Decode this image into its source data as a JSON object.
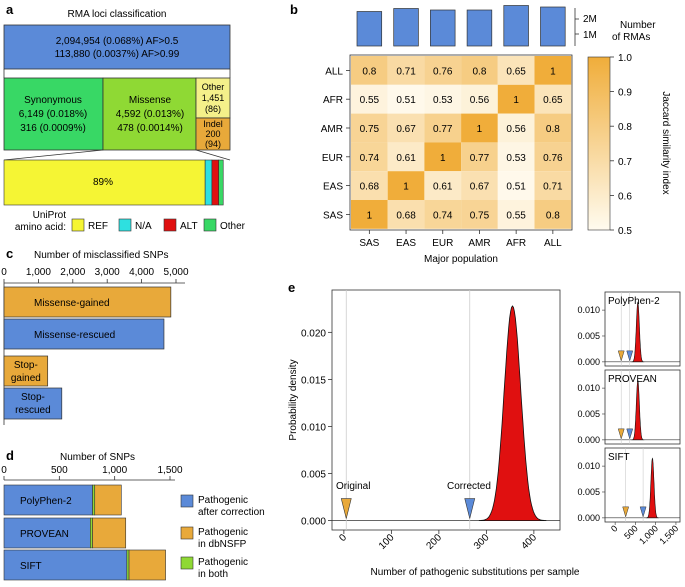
{
  "colors": {
    "blue": "#5b8ad8",
    "green": "#38d865",
    "lime": "#8fd934",
    "yellow": "#f5f534",
    "orange": "#e8a93a",
    "cyan": "#2ee0e0",
    "red": "#e01010",
    "paleyellow": "#f4f08a",
    "heatlow": "#fffbef",
    "heathigh": "#f0ad3a",
    "axis": "#333333"
  },
  "panel_a": {
    "label": "a",
    "title": "RMA loci classification",
    "top_box": {
      "line1": "2,094,954 (0.068%) AF>0.5",
      "line2": "113,880 (0.0037%) AF>0.99"
    },
    "synonymous": {
      "name": "Synonymous",
      "line1": "6,149 (0.018%)",
      "line2": "316 (0.0009%)"
    },
    "missense": {
      "name": "Missense",
      "line1": "4,592 (0.013%)",
      "line2": "478 (0.0014%)"
    },
    "other": {
      "name": "Other",
      "line1": "1,451",
      "line2": "(86)"
    },
    "indel": {
      "name": "Indel",
      "line1": "200",
      "line2": "(94)"
    },
    "bottom_bar": {
      "ref_percent": "89%",
      "fractions": [
        0.89,
        0.03,
        0.03,
        0.02
      ]
    },
    "legend_title_1": "UniProt",
    "legend_title_2": "amino acid:",
    "legend": [
      "REF",
      "N/A",
      "ALT",
      "Other"
    ]
  },
  "panel_b": {
    "label": "b",
    "xlabel": "Major population",
    "colorbar_label": "Jaccard similarity index",
    "colorbar_ticks": [
      "1.0",
      "0.9",
      "0.8",
      "0.7",
      "0.6",
      "0.5"
    ],
    "bar_axis_label_1": "Number",
    "bar_axis_label_2": "of RMAs",
    "bar_ticks": [
      "2M",
      "1M"
    ]
  },
  "panel_c": {
    "label": "c",
    "title": "Number of misclassified SNPs",
    "ticks": [
      "0",
      "1,000",
      "2,000",
      "3,000",
      "4,000",
      "5,000"
    ],
    "bars": [
      {
        "label": "Missense-gained",
        "value": 4850
      },
      {
        "label": "Missense-rescued",
        "value": 4650
      },
      {
        "label1": "Stop-",
        "label2": "gained",
        "value": 1270
      },
      {
        "label1": "Stop-",
        "label2": "rescued",
        "value": 1680
      }
    ]
  },
  "panel_d": {
    "label": "d",
    "title": "Number of SNPs",
    "ticks": [
      "0",
      "500",
      "1,000",
      "1,500"
    ],
    "tools": [
      {
        "name": "PolyPhen-2",
        "blue": 800,
        "green": 20,
        "orange": 240
      },
      {
        "name": "PROVEAN",
        "blue": 780,
        "green": 20,
        "orange": 300
      },
      {
        "name": "SIFT",
        "blue": 1110,
        "green": 20,
        "orange": 330
      }
    ],
    "legend": [
      {
        "line1": "Pathogenic",
        "line2": "after correction"
      },
      {
        "line1": "Pathogenic",
        "line2": "in dbNSFP"
      },
      {
        "line1": "Pathogenic",
        "line2": "in both"
      }
    ]
  },
  "panel_e": {
    "label": "e",
    "ylabel": "Probability density",
    "xlabel": "Number of pathogenic substitutions per sample",
    "yticks": [
      "0.000",
      "0.005",
      "0.010",
      "0.015",
      "0.020"
    ],
    "xticks": [
      "0",
      "100",
      "200",
      "300",
      "400"
    ],
    "original_label": "Original",
    "corrected_label": "Corrected",
    "original_value": 5,
    "corrected_value": 265,
    "peak_center": 355,
    "sub_panels": [
      {
        "name": "PolyPhen-2",
        "original": 150,
        "corrected": 360,
        "peak": 560
      },
      {
        "name": "PROVEAN",
        "original": 150,
        "corrected": 360,
        "peak": 560
      },
      {
        "name": "SIFT",
        "original": 260,
        "corrected": 690,
        "peak": 920
      }
    ],
    "sub_yticks": [
      "0.010",
      "0.005",
      "0.000"
    ],
    "sub_xticks": [
      "0",
      "500",
      "1,000",
      "1,500"
    ]
  },
  "chart_data": {
    "type": "heatmap",
    "title": "Jaccard similarity index",
    "xlabel": "Major population",
    "ylabel": "",
    "x_categories": [
      "SAS",
      "EAS",
      "EUR",
      "AMR",
      "AFR",
      "ALL"
    ],
    "y_categories": [
      "ALL",
      "AFR",
      "AMR",
      "EUR",
      "EAS",
      "SAS"
    ],
    "values": [
      [
        0.8,
        0.71,
        0.76,
        0.8,
        0.65,
        1
      ],
      [
        0.55,
        0.51,
        0.53,
        0.56,
        1,
        0.65
      ],
      [
        0.75,
        0.67,
        0.77,
        1,
        0.56,
        0.8
      ],
      [
        0.74,
        0.61,
        1,
        0.77,
        0.53,
        0.76
      ],
      [
        0.68,
        1,
        0.61,
        0.67,
        0.51,
        0.71
      ],
      [
        1,
        0.68,
        0.74,
        0.75,
        0.55,
        0.8
      ]
    ],
    "value_range": [
      0.5,
      1.0
    ],
    "top_bars": {
      "categories": [
        "SAS",
        "EAS",
        "EUR",
        "AMR",
        "AFR",
        "ALL"
      ],
      "values_millions": [
        2.3,
        2.5,
        2.4,
        2.4,
        2.7,
        2.6
      ]
    }
  }
}
